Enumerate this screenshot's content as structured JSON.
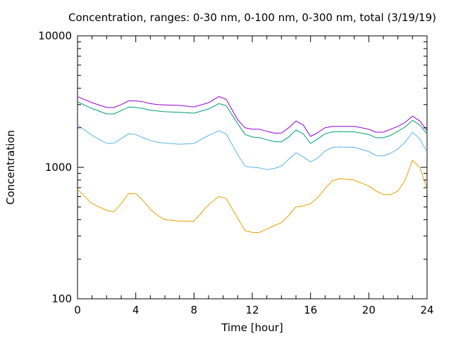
{
  "chart_data": {
    "type": "line",
    "title": "Concentration, ranges: 0-30 nm, 0-100 nm, 0-300 nm, total (3/19/19)",
    "xlabel": "Time [hour]",
    "ylabel": "Concentration",
    "xlim": [
      0,
      24
    ],
    "ylim": [
      100,
      10000
    ],
    "y_scale": "log",
    "grid": false,
    "legend": "none",
    "x_ticks": [
      0,
      4,
      8,
      12,
      16,
      20,
      24
    ],
    "x_tick_labels": [
      "0",
      "4",
      "8",
      "12",
      "16",
      "20",
      "24"
    ],
    "y_ticks": [
      100,
      1000,
      10000
    ],
    "y_tick_labels": [
      "100",
      "1000",
      "10000"
    ],
    "x": [
      0,
      1,
      2,
      2.5,
      3,
      3.5,
      4,
      4.5,
      5,
      5.5,
      6,
      7,
      8,
      9,
      9.7,
      10.2,
      11,
      11.5,
      12,
      12.5,
      13,
      13.5,
      14,
      14.5,
      15,
      15.5,
      16,
      16.5,
      17,
      17.5,
      18,
      19,
      20,
      20.5,
      21,
      21.5,
      22,
      22.5,
      23,
      23.5,
      24
    ],
    "series": [
      {
        "color": "#e69f00",
        "values": [
          680,
          530,
          470,
          460,
          530,
          630,
          630,
          560,
          480,
          430,
          400,
          390,
          390,
          520,
          600,
          580,
          410,
          330,
          320,
          320,
          340,
          360,
          380,
          430,
          500,
          510,
          530,
          590,
          690,
          790,
          820,
          800,
          720,
          660,
          620,
          620,
          660,
          800,
          1130,
          1000,
          690
        ]
      },
      {
        "color": "#56b4e9",
        "values": [
          2100,
          1750,
          1520,
          1530,
          1650,
          1800,
          1780,
          1680,
          1600,
          1550,
          1530,
          1500,
          1520,
          1750,
          1900,
          1800,
          1250,
          1020,
          1000,
          990,
          960,
          980,
          1020,
          1150,
          1290,
          1200,
          1100,
          1180,
          1330,
          1420,
          1430,
          1420,
          1320,
          1230,
          1220,
          1280,
          1380,
          1550,
          1850,
          1650,
          1300
        ]
      },
      {
        "color": "#009e73",
        "values": [
          3150,
          2800,
          2550,
          2550,
          2700,
          2870,
          2860,
          2800,
          2720,
          2680,
          2650,
          2620,
          2580,
          2780,
          3050,
          2950,
          2150,
          1780,
          1700,
          1680,
          1620,
          1570,
          1560,
          1700,
          1920,
          1800,
          1520,
          1650,
          1800,
          1860,
          1870,
          1860,
          1780,
          1680,
          1680,
          1750,
          1880,
          2030,
          2280,
          2100,
          1800
        ]
      },
      {
        "color": "#9400d3",
        "values": [
          3450,
          3100,
          2850,
          2850,
          3000,
          3200,
          3200,
          3150,
          3050,
          3000,
          2980,
          2960,
          2880,
          3100,
          3450,
          3300,
          2300,
          2000,
          1950,
          1950,
          1880,
          1820,
          1820,
          2000,
          2250,
          2100,
          1720,
          1840,
          2000,
          2050,
          2050,
          2050,
          1950,
          1850,
          1850,
          1950,
          2050,
          2200,
          2450,
          2250,
          1900
        ]
      }
    ]
  }
}
